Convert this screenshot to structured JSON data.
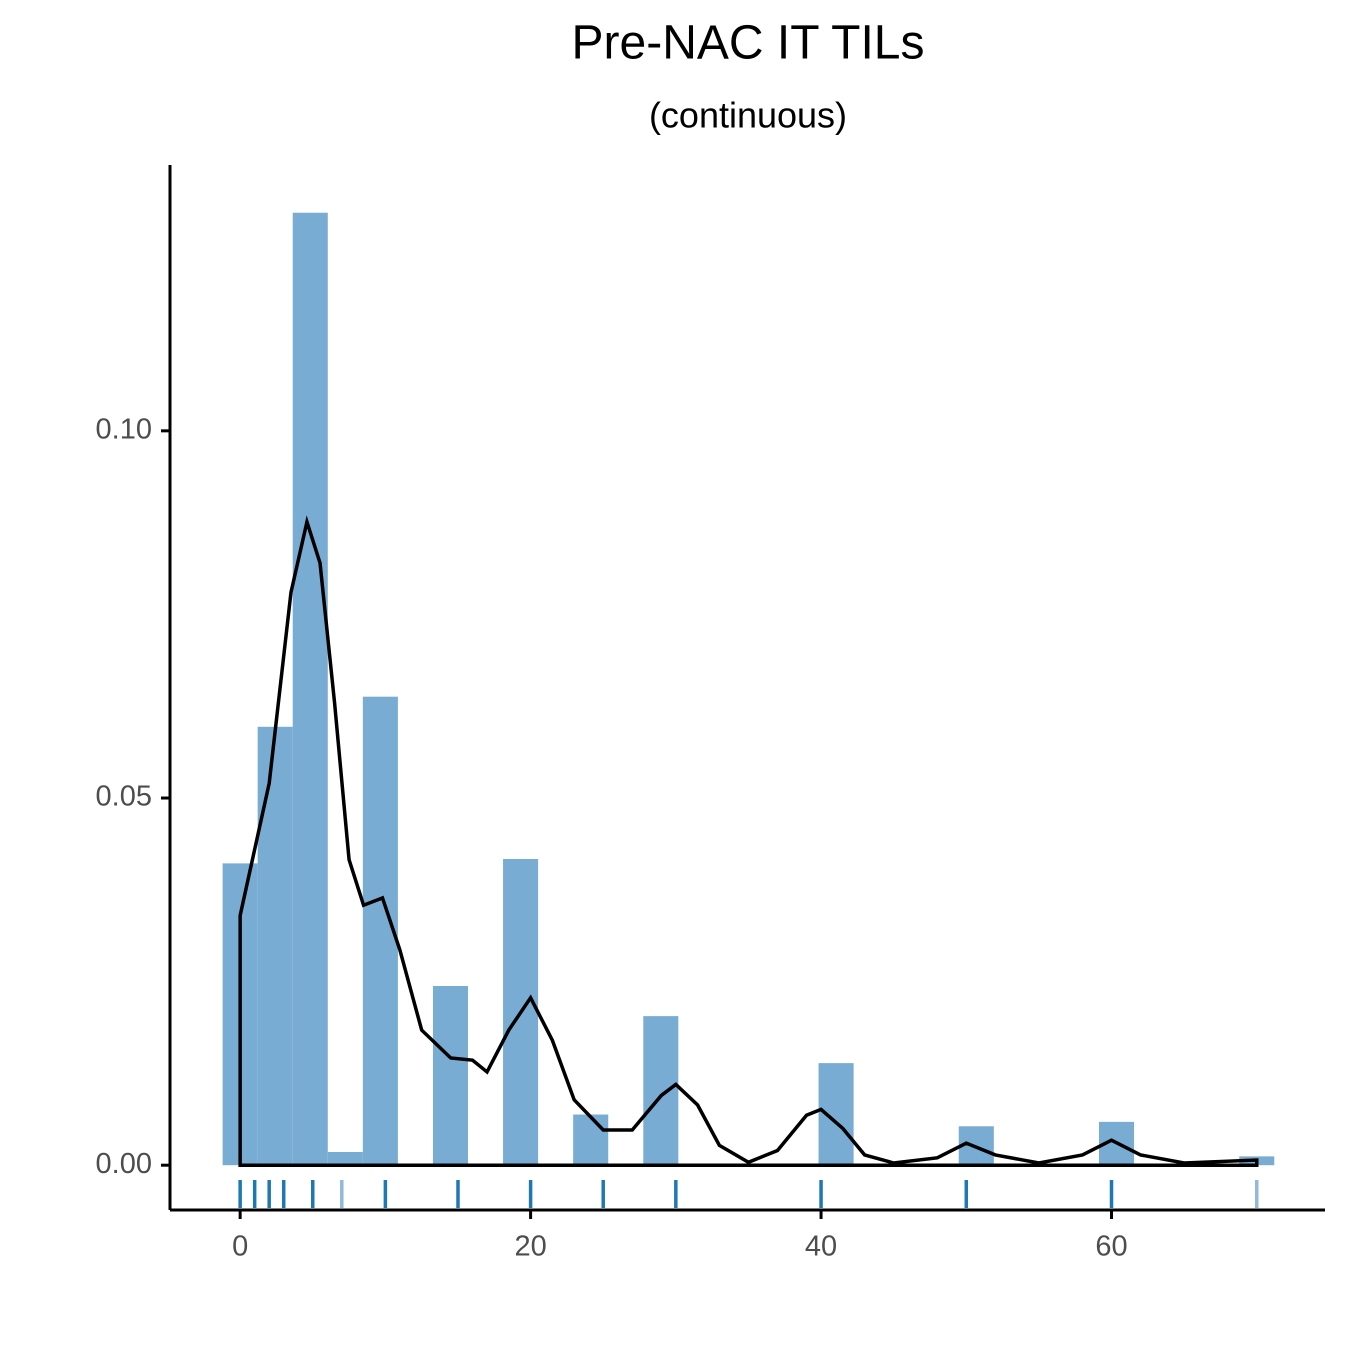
{
  "chart_data": {
    "type": "histogram",
    "title": "Pre-NAC IT TILs",
    "subtitle": "(continuous)",
    "bins": [
      -1.207,
      1.207,
      3.621,
      6.034,
      8.448,
      10.862,
      13.276,
      15.69,
      18.103,
      20.517,
      22.931,
      25.345,
      27.759,
      30.172,
      32.586,
      35.0,
      37.414,
      39.828,
      42.241,
      44.655,
      47.069,
      49.483,
      51.897,
      54.31,
      56.724,
      59.138,
      61.552,
      63.966,
      66.379,
      68.793,
      71.207
    ],
    "counts": [
      0.0411,
      0.0597,
      0.1297,
      0.0018,
      0.0638,
      0,
      0.0244,
      0,
      0.0417,
      0,
      0.0069,
      0,
      0.0203,
      0,
      0,
      0,
      0,
      0.0139,
      0,
      0,
      0,
      0.0053,
      0,
      0,
      0,
      0.0059,
      0,
      0,
      0,
      0.0012
    ],
    "color": "#78acd2",
    "density": {
      "color": "#000000",
      "x": [
        0,
        2,
        3.5,
        4.6,
        5.5,
        6.5,
        7.5,
        8.5,
        9.8,
        11,
        12.5,
        14.5,
        16,
        17,
        18.5,
        20,
        21.5,
        23,
        25,
        27,
        29,
        30,
        31.5,
        33,
        35,
        37,
        39,
        40,
        41.5,
        43,
        45,
        48,
        50,
        52,
        55,
        58,
        60,
        62,
        65,
        70
      ],
      "values": [
        0.034,
        0.052,
        0.078,
        0.0876,
        0.082,
        0.063,
        0.0416,
        0.0354,
        0.0364,
        0.0293,
        0.0184,
        0.0146,
        0.0143,
        0.0127,
        0.0184,
        0.0228,
        0.017,
        0.0089,
        0.0048,
        0.0048,
        0.0095,
        0.011,
        0.0082,
        0.0027,
        0.0004,
        0.002,
        0.0068,
        0.0076,
        0.005,
        0.0014,
        0.0003,
        0.001,
        0.003,
        0.0014,
        0.0003,
        0.0014,
        0.0034,
        0.0014,
        0.0003,
        0.0007
      ]
    },
    "rug": {
      "values": [
        0,
        1,
        2,
        3,
        5,
        7,
        10,
        15,
        20,
        25,
        30,
        40,
        50,
        60,
        70
      ],
      "colors": [
        "#1f77b4",
        "#1f77b4",
        "#1f77b4",
        "#1f77b4",
        "#1f77b4",
        "#8fbbd9",
        "#1f77b4",
        "#1f77b4",
        "#1f77b4",
        "#1f77b4",
        "#1f77b4",
        "#1f77b4",
        "#1f77b4",
        "#1f77b4",
        "#8fbbd9"
      ]
    },
    "xlim": [
      -4.83,
      74.7
    ],
    "ylim": [
      -0.0061,
      0.1362
    ],
    "xticks": [
      0,
      20,
      40,
      60
    ],
    "yticks": [
      {
        "value": 0,
        "label": "0.00"
      },
      {
        "value": 0.05,
        "label": "0.05"
      },
      {
        "value": 0.1,
        "label": "0.10"
      }
    ]
  }
}
